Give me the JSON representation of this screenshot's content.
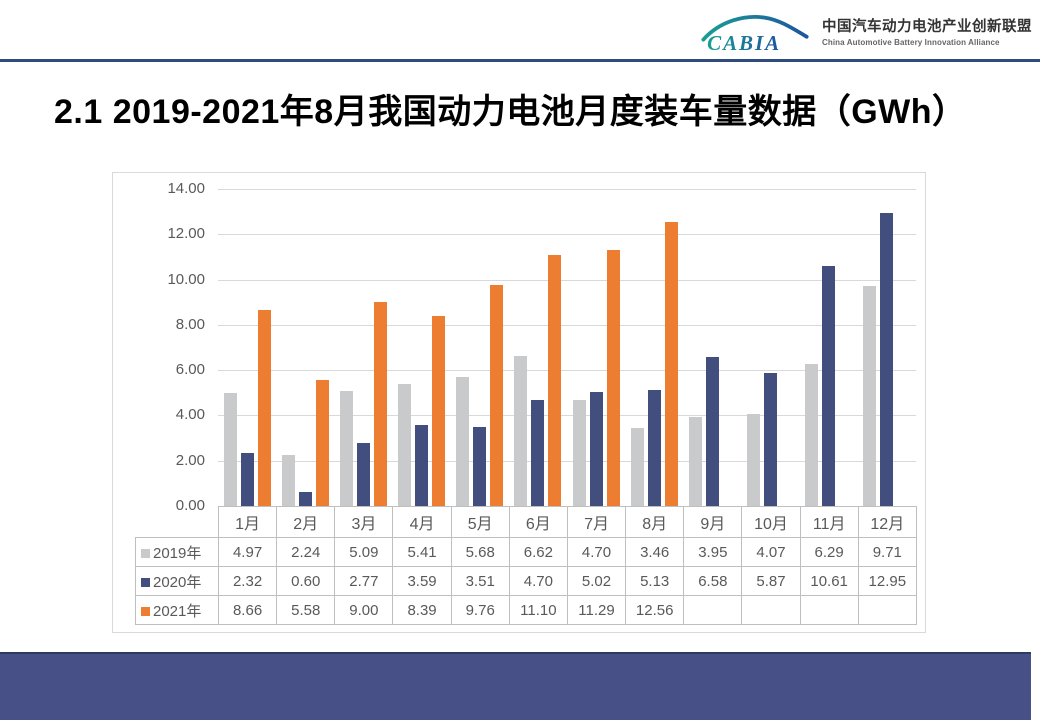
{
  "header": {
    "logo": {
      "mark": "CABIA",
      "cn": "中国汽车动力电池产业创新联盟",
      "en": "China Automotive Battery Innovation Alliance"
    }
  },
  "title": "2.1 2019-2021年8月我国动力电池月度装车量数据（GWh）",
  "chart_data": {
    "type": "bar",
    "title": "2019-2021年8月我国动力电池月度装车量数据（GWh）",
    "xlabel": "",
    "ylabel": "",
    "categories": [
      "1月",
      "2月",
      "3月",
      "4月",
      "5月",
      "6月",
      "7月",
      "8月",
      "9月",
      "10月",
      "11月",
      "12月"
    ],
    "series": [
      {
        "name": "2019年",
        "color": "#c9cacb",
        "values": [
          4.97,
          2.24,
          5.09,
          5.41,
          5.68,
          6.62,
          4.7,
          3.46,
          3.95,
          4.07,
          6.29,
          9.71
        ]
      },
      {
        "name": "2020年",
        "color": "#414e7e",
        "values": [
          2.32,
          0.6,
          2.77,
          3.59,
          3.51,
          4.7,
          5.02,
          5.13,
          6.58,
          5.87,
          10.61,
          12.95
        ]
      },
      {
        "name": "2021年",
        "color": "#ed7d31",
        "values": [
          8.66,
          5.58,
          9.0,
          8.39,
          9.76,
          11.1,
          11.29,
          12.56,
          null,
          null,
          null,
          null
        ]
      }
    ],
    "ylim": [
      0,
      14
    ],
    "yticks": [
      "0.00",
      "2.00",
      "4.00",
      "6.00",
      "8.00",
      "10.00",
      "12.00",
      "14.00"
    ],
    "grid": true,
    "legend_position": "data-table-left",
    "data_table": true
  },
  "colors": {
    "divider": "#2e4c7e",
    "footer": "#475087",
    "gridline": "#d9d9d9",
    "table_border": "#bfbfbf",
    "axis_text": "#595959",
    "logo_teal": "#1a9e93",
    "logo_blue": "#1e55a0"
  }
}
